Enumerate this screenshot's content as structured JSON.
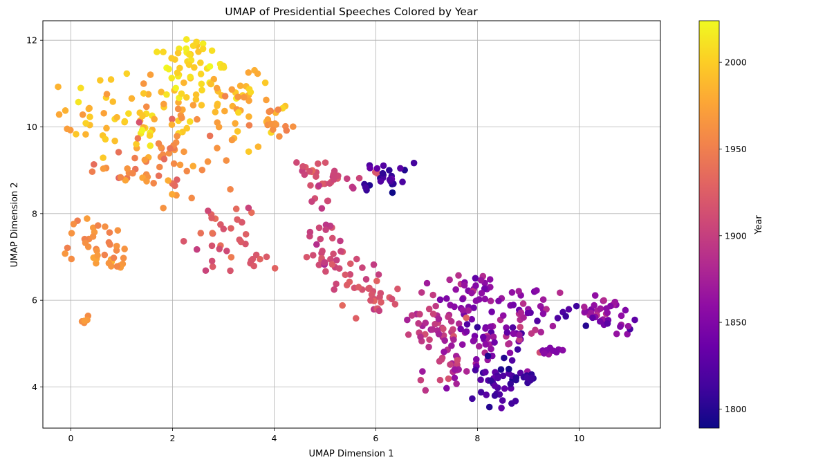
{
  "chart_data": {
    "type": "scatter",
    "title": "UMAP of Presidential Speeches Colored by Year",
    "xlabel": "UMAP Dimension 1",
    "ylabel": "UMAP Dimension 2",
    "xlim": [
      -0.55,
      11.6
    ],
    "ylim": [
      3.05,
      12.45
    ],
    "xticks": [
      0,
      2,
      4,
      6,
      8,
      10
    ],
    "yticks": [
      4,
      6,
      8,
      10,
      12
    ],
    "grid": true,
    "colormap": "plasma",
    "colorbar": {
      "label": "Year",
      "range": [
        1789,
        2024
      ],
      "ticks": [
        1800,
        1850,
        1900,
        1950,
        2000
      ]
    },
    "clusters": [
      {
        "cx": 1.2,
        "cy": 10.3,
        "sx": 0.75,
        "sy": 0.55,
        "n": 70,
        "year": 1990,
        "ys": 18
      },
      {
        "cx": 2.3,
        "cy": 11.5,
        "sx": 0.35,
        "sy": 0.35,
        "n": 35,
        "year": 2010,
        "ys": 10
      },
      {
        "cx": 2.8,
        "cy": 10.8,
        "sx": 0.5,
        "sy": 0.4,
        "n": 40,
        "year": 1995,
        "ys": 15
      },
      {
        "cx": 3.4,
        "cy": 10.3,
        "sx": 0.45,
        "sy": 0.4,
        "n": 25,
        "year": 1980,
        "ys": 15
      },
      {
        "cx": 2.0,
        "cy": 9.2,
        "sx": 0.75,
        "sy": 0.5,
        "n": 60,
        "year": 1958,
        "ys": 12
      },
      {
        "cx": 0.5,
        "cy": 7.4,
        "sx": 0.3,
        "sy": 0.25,
        "n": 25,
        "year": 1955,
        "ys": 8
      },
      {
        "cx": 0.75,
        "cy": 6.9,
        "sx": 0.3,
        "sy": 0.12,
        "n": 15,
        "year": 1965,
        "ys": 8
      },
      {
        "cx": 0.27,
        "cy": 5.5,
        "sx": 0.05,
        "sy": 0.05,
        "n": 5,
        "year": 1965,
        "ys": 5
      },
      {
        "cx": 2.9,
        "cy": 7.5,
        "sx": 0.3,
        "sy": 0.35,
        "n": 30,
        "year": 1925,
        "ys": 10
      },
      {
        "cx": 3.7,
        "cy": 6.9,
        "sx": 0.15,
        "sy": 0.1,
        "n": 8,
        "year": 1925,
        "ys": 6
      },
      {
        "cx": 4.1,
        "cy": 10.0,
        "sx": 0.25,
        "sy": 0.2,
        "n": 12,
        "year": 1960,
        "ys": 10
      },
      {
        "cx": 4.8,
        "cy": 8.9,
        "sx": 0.35,
        "sy": 0.2,
        "n": 20,
        "year": 1915,
        "ys": 10
      },
      {
        "cx": 5.5,
        "cy": 8.8,
        "sx": 0.3,
        "sy": 0.15,
        "n": 12,
        "year": 1910,
        "ys": 10
      },
      {
        "cx": 6.15,
        "cy": 8.9,
        "sx": 0.2,
        "sy": 0.2,
        "n": 25,
        "year": 1810,
        "ys": 12
      },
      {
        "cx": 4.9,
        "cy": 7.7,
        "sx": 0.2,
        "sy": 0.4,
        "n": 20,
        "year": 1905,
        "ys": 8
      },
      {
        "cx": 5.3,
        "cy": 6.9,
        "sx": 0.3,
        "sy": 0.15,
        "n": 20,
        "year": 1910,
        "ys": 8
      },
      {
        "cx": 5.7,
        "cy": 6.3,
        "sx": 0.25,
        "sy": 0.2,
        "n": 20,
        "year": 1920,
        "ys": 8
      },
      {
        "cx": 6.0,
        "cy": 5.75,
        "sx": 0.2,
        "sy": 0.2,
        "n": 10,
        "year": 1910,
        "ys": 8
      },
      {
        "cx": 7.1,
        "cy": 5.4,
        "sx": 0.3,
        "sy": 0.45,
        "n": 40,
        "year": 1890,
        "ys": 15
      },
      {
        "cx": 7.5,
        "cy": 4.5,
        "sx": 0.25,
        "sy": 0.3,
        "n": 25,
        "year": 1885,
        "ys": 15
      },
      {
        "cx": 7.9,
        "cy": 6.0,
        "sx": 0.35,
        "sy": 0.4,
        "n": 40,
        "year": 1855,
        "ys": 15
      },
      {
        "cx": 8.2,
        "cy": 5.1,
        "sx": 0.35,
        "sy": 0.3,
        "n": 45,
        "year": 1860,
        "ys": 20
      },
      {
        "cx": 8.45,
        "cy": 4.2,
        "sx": 0.3,
        "sy": 0.3,
        "n": 40,
        "year": 1815,
        "ys": 12
      },
      {
        "cx": 8.9,
        "cy": 5.6,
        "sx": 0.35,
        "sy": 0.45,
        "n": 40,
        "year": 1870,
        "ys": 18
      },
      {
        "cx": 9.0,
        "cy": 4.2,
        "sx": 0.15,
        "sy": 0.08,
        "n": 10,
        "year": 1805,
        "ys": 6
      },
      {
        "cx": 9.5,
        "cy": 4.8,
        "sx": 0.15,
        "sy": 0.05,
        "n": 8,
        "year": 1850,
        "ys": 6
      },
      {
        "cx": 10.5,
        "cy": 5.8,
        "sx": 0.3,
        "sy": 0.15,
        "n": 25,
        "year": 1870,
        "ys": 12
      },
      {
        "cx": 10.6,
        "cy": 5.4,
        "sx": 0.3,
        "sy": 0.15,
        "n": 12,
        "year": 1840,
        "ys": 15
      },
      {
        "cx": 9.9,
        "cy": 5.7,
        "sx": 0.15,
        "sy": 0.1,
        "n": 5,
        "year": 1820,
        "ys": 6
      }
    ]
  }
}
